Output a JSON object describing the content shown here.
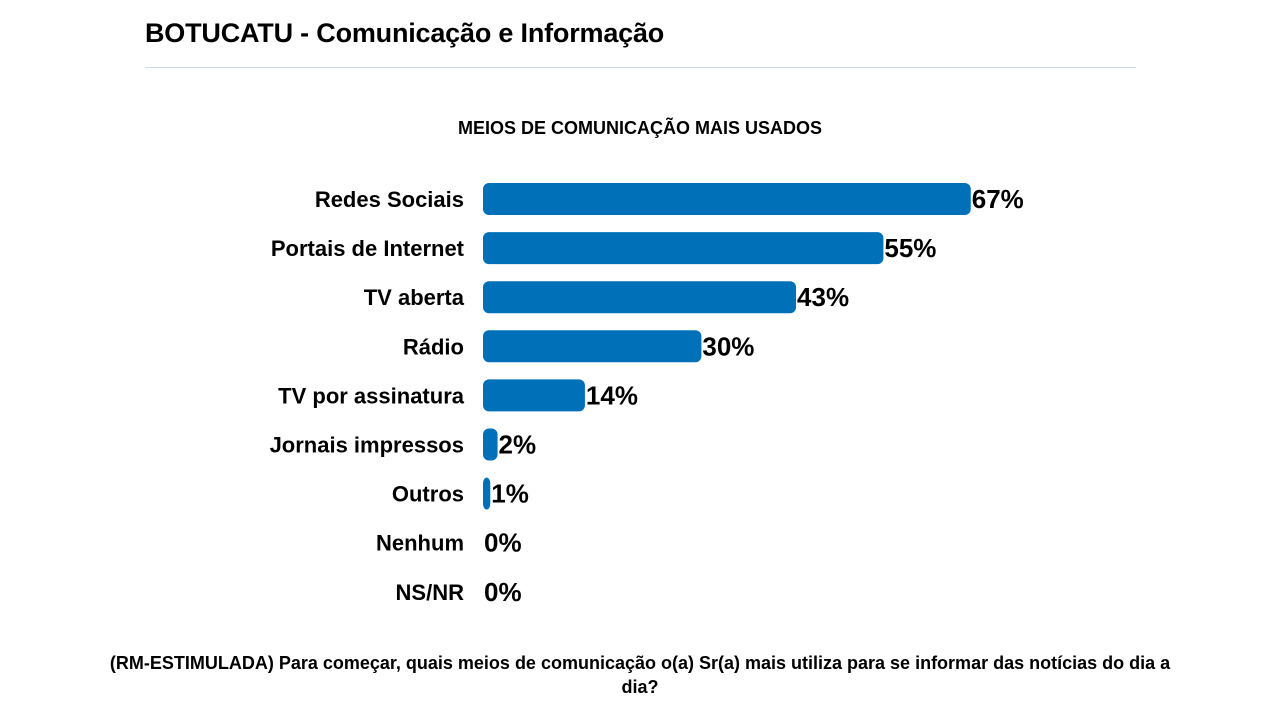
{
  "header": {
    "title": "BOTUCATU - Comunicação e Informação"
  },
  "question": "(RM-ESTIMULADA) Para começar, quais meios de comunicação o(a) Sr(a) mais utiliza para se informar das notícias do dia a dia?",
  "colors": {
    "bar": "#0070b8",
    "rule": "#cfdde2"
  },
  "chart_data": {
    "type": "bar",
    "orientation": "horizontal",
    "title": "MEIOS DE COMUNICAÇÃO MAIS USADOS",
    "categories": [
      "Redes Sociais",
      "Portais de Internet",
      "TV aberta",
      "Rádio",
      "TV por assinatura",
      "Jornais impressos",
      "Outros",
      "Nenhum",
      "NS/NR"
    ],
    "values": [
      67,
      55,
      43,
      30,
      14,
      2,
      1,
      0,
      0
    ],
    "value_labels": [
      "67%",
      "55%",
      "43%",
      "30%",
      "14%",
      "2%",
      "1%",
      "0%",
      "0%"
    ],
    "xlabel": "",
    "ylabel": "",
    "grid": false,
    "legend": "none"
  }
}
